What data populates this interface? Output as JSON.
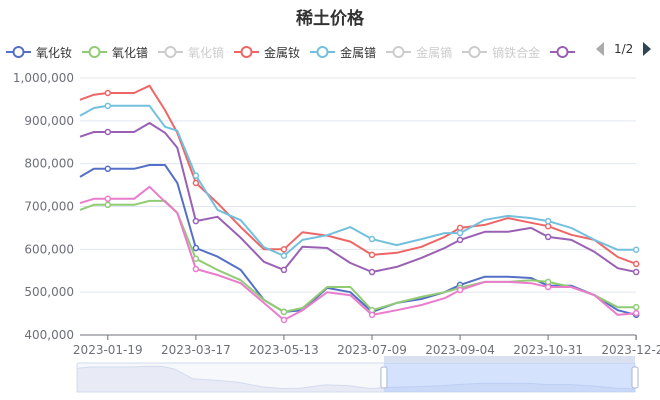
{
  "chart_data": {
    "type": "line",
    "title": "稀土价格",
    "xlabel": "",
    "ylabel": "",
    "ylim": [
      400000,
      1000000
    ],
    "yticks": [
      "400,000",
      "500,000",
      "600,000",
      "700,000",
      "800,000",
      "900,000",
      "1,000,000"
    ],
    "xticks": [
      "2023-01-19",
      "2023-03-17",
      "2023-05-13",
      "2023-07-09",
      "2023-09-04",
      "2023-10-31",
      "2023-12-27"
    ],
    "grid": true,
    "legend_position": "top",
    "legend": {
      "items": [
        {
          "name": "氧化钕",
          "color": "#5470c6",
          "active": true
        },
        {
          "name": "氧化镨",
          "color": "#91cc75",
          "active": true
        },
        {
          "name": "氧化镝",
          "color": "#cccccc",
          "active": false
        },
        {
          "name": "金属钕",
          "color": "#ee6666",
          "active": true
        },
        {
          "name": "金属镨",
          "color": "#73c0de",
          "active": true
        },
        {
          "name": "金属镝",
          "color": "#cccccc",
          "active": false
        },
        {
          "name": "镝铁合金",
          "color": "#cccccc",
          "active": false
        },
        {
          "name": "",
          "color": "#9a60b4",
          "active": true
        }
      ],
      "page": "1/2"
    },
    "x": [
      "2023-01-01",
      "2023-01-10",
      "2023-01-19",
      "2023-02-05",
      "2023-02-15",
      "2023-02-25",
      "2023-03-05",
      "2023-03-17",
      "2023-03-31",
      "2023-04-15",
      "2023-04-30",
      "2023-05-13",
      "2023-05-25",
      "2023-06-10",
      "2023-06-25",
      "2023-07-09",
      "2023-07-25",
      "2023-08-10",
      "2023-08-25",
      "2023-09-04",
      "2023-09-20",
      "2023-10-05",
      "2023-10-20",
      "2023-10-31",
      "2023-11-15",
      "2023-11-30",
      "2023-12-15",
      "2023-12-27"
    ],
    "series": [
      {
        "name": "金属钕",
        "color": "#ee6666",
        "values": [
          949000,
          961000,
          965000,
          965000,
          982000,
          925000,
          872000,
          755000,
          708000,
          652000,
          600000,
          600000,
          640000,
          632000,
          618000,
          587000,
          592000,
          606000,
          629000,
          650000,
          657000,
          673000,
          662000,
          654000,
          634000,
          622000,
          582000,
          566000
        ]
      },
      {
        "name": "金属镨",
        "color": "#73c0de",
        "values": [
          912000,
          930000,
          935000,
          935000,
          935000,
          886000,
          877000,
          772000,
          692000,
          668000,
          605000,
          585000,
          622000,
          633000,
          652000,
          624000,
          610000,
          624000,
          638000,
          638000,
          669000,
          678000,
          673000,
          666000,
          650000,
          622000,
          599000,
          599000
        ]
      },
      {
        "name": "",
        "color": "#9a60b4",
        "values": [
          863000,
          874000,
          874000,
          874000,
          895000,
          872000,
          837000,
          666000,
          676000,
          627000,
          571000,
          552000,
          606000,
          603000,
          568000,
          547000,
          559000,
          580000,
          603000,
          622000,
          641000,
          641000,
          650000,
          629000,
          622000,
          594000,
          556000,
          547000
        ]
      },
      {
        "name": "氧化钕",
        "color": "#5470c6",
        "values": [
          769000,
          788000,
          788000,
          788000,
          797000,
          797000,
          755000,
          603000,
          583000,
          552000,
          482000,
          454000,
          458000,
          510000,
          500000,
          454000,
          475000,
          484000,
          500000,
          517000,
          536000,
          536000,
          533000,
          515000,
          515000,
          493000,
          458000,
          447000
        ]
      },
      {
        "name": "氧化镨",
        "color": "#91cc75",
        "values": [
          692000,
          704000,
          704000,
          704000,
          713000,
          713000,
          685000,
          578000,
          552000,
          528000,
          482000,
          454000,
          463000,
          512000,
          512000,
          458000,
          475000,
          489000,
          500000,
          510000,
          524000,
          524000,
          528000,
          524000,
          512000,
          493000,
          465000,
          465000
        ]
      },
      {
        "name": "",
        "color": "#ea7ccc",
        "values": [
          708000,
          718000,
          718000,
          718000,
          746000,
          711000,
          685000,
          554000,
          540000,
          521000,
          475000,
          435000,
          458000,
          500000,
          493000,
          447000,
          458000,
          470000,
          486000,
          505000,
          524000,
          524000,
          521000,
          512000,
          512000,
          493000,
          447000,
          451000
        ]
      }
    ],
    "markers_at": [
      "2023-01-19",
      "2023-03-17",
      "2023-05-13",
      "2023-07-09",
      "2023-09-04",
      "2023-10-31",
      "2023-12-27"
    ],
    "data_zoom": {
      "start_percent": 55,
      "end_percent": 100
    }
  }
}
